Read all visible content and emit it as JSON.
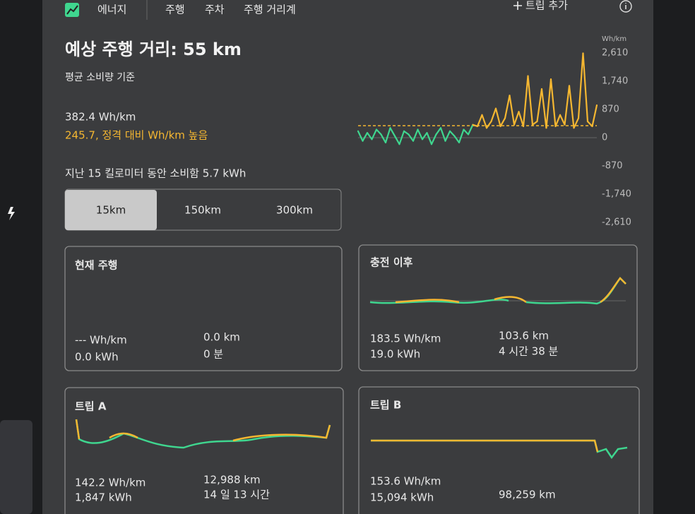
{
  "nav": {
    "tab": "에너지",
    "links": [
      "주행",
      "주차",
      "주행 거리계"
    ],
    "add_trip": "트립 추가"
  },
  "summary": {
    "title": "예상 주행 거리: 55 km",
    "basis": "평균 소비량 기준",
    "average": "382.4 Wh/km",
    "comparison": "245.7, 정격 대비 Wh/km 높음",
    "recent": "지난 15 킬로미터 동안 소비함 5.7 kWh"
  },
  "range_options": [
    "15km",
    "150km",
    "300km"
  ],
  "selected_range": 0,
  "chart": {
    "type": "line",
    "unit": "Wh/km",
    "ylim": [
      -2610,
      2610
    ],
    "yticks": [
      {
        "value": 2610,
        "label": "2,610"
      },
      {
        "value": 1740,
        "label": "1,740"
      },
      870,
      0,
      -870,
      {
        "value": -1740,
        "label": "-1,740"
      },
      {
        "value": -2610,
        "label": "-2,610"
      }
    ],
    "rated": 370,
    "colors": {
      "above": "#f5b731",
      "below": "#3fd68f"
    },
    "values": [
      200,
      -100,
      150,
      -50,
      250,
      100,
      -150,
      300,
      50,
      -200,
      200,
      100,
      -100,
      250,
      -50,
      150,
      -200,
      100,
      300,
      -100,
      200,
      50,
      -150,
      250,
      100,
      400,
      350,
      700,
      300,
      500,
      900,
      350,
      600,
      1300,
      400,
      800,
      350,
      1900,
      400,
      500,
      1500,
      300,
      1800,
      350,
      700,
      400,
      1600,
      300,
      600,
      2600,
      500,
      350,
      1000
    ]
  },
  "cards": [
    {
      "title": "현재 주행",
      "stats": [
        [
          "--- Wh/km",
          "0.0 km"
        ],
        [
          "0.0 kWh",
          "0 분"
        ]
      ]
    },
    {
      "title": "충전 이후",
      "stats": [
        [
          "183.5 Wh/km",
          "103.6 km"
        ],
        [
          "19.0 kWh",
          "4 시간 38 분"
        ]
      ]
    },
    {
      "title": "트립 A",
      "stats": [
        [
          "142.2 Wh/km",
          "12,988 km"
        ],
        [
          "1,847 kWh",
          "14 일 13 시간"
        ]
      ]
    },
    {
      "title": "트립 B",
      "stats": [
        [
          "153.6 Wh/km"
        ],
        [
          "15,094 kWh",
          "98,259 km"
        ]
      ]
    }
  ]
}
